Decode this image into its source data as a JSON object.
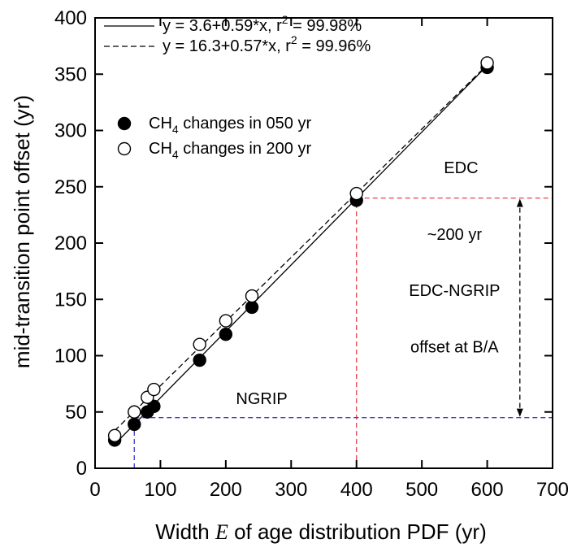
{
  "chart_data": {
    "type": "scatter",
    "xlabel_prefix": "Width ",
    "xlabel_var": "E",
    "xlabel_suffix": " of age distribution PDF (yr)",
    "ylabel": "mid-transition point offset (yr)",
    "xlim": [
      0,
      700
    ],
    "ylim": [
      0,
      400
    ],
    "xticks": [
      0,
      100,
      200,
      300,
      400,
      500,
      600,
      700
    ],
    "yticks": [
      0,
      50,
      100,
      150,
      200,
      250,
      300,
      350,
      400
    ],
    "series": [
      {
        "legend_label": "CH4 changes in 050 yr",
        "legend_pre": "CH",
        "legend_sub": "4",
        "legend_post": " changes in 050 yr",
        "marker": "filled",
        "x": [
          30,
          60,
          80,
          90,
          160,
          200,
          240,
          400,
          600
        ],
        "y": [
          25,
          39,
          50,
          55,
          96,
          119,
          143,
          238,
          356
        ]
      },
      {
        "legend_label": "CH4 changes in 200 yr",
        "legend_pre": "CH",
        "legend_sub": "4",
        "legend_post": " changes in 200 yr",
        "marker": "open",
        "x": [
          30,
          60,
          80,
          90,
          160,
          200,
          240,
          400,
          600
        ],
        "y": [
          29,
          50,
          63,
          70,
          110,
          131,
          153,
          244,
          360
        ]
      }
    ],
    "fits": [
      {
        "style": "solid",
        "intercept": 3.6,
        "slope": 0.59,
        "x_range": [
          30,
          600
        ],
        "label_main": "y = 3.6+0.59*x, r",
        "label_sup": "2",
        "label_end": " = 99.98%"
      },
      {
        "style": "dashed",
        "intercept": 16.3,
        "slope": 0.57,
        "x_range": [
          30,
          600
        ],
        "label_main": "y = 16.3+0.57*x, r",
        "label_sup": "2",
        "label_end": " = 99.96%"
      }
    ],
    "reference_lines": [
      {
        "name": "EDC",
        "color": "#e8414e",
        "x": 400,
        "y": 240
      },
      {
        "name": "NGRIP",
        "color": "#3a3ad0",
        "x": 60,
        "y": 45
      }
    ],
    "arrow": {
      "x": 650,
      "y_from": 45,
      "y_to": 240
    },
    "annotations": [
      {
        "key": "edc",
        "text": "EDC",
        "x": 560,
        "y": 262
      },
      {
        "key": "ngrip",
        "text": "NGRIP",
        "x": 255,
        "y": 57
      },
      {
        "key": "offset200",
        "text": "~200 yr",
        "x": 550,
        "y": 203
      },
      {
        "key": "edcngrip",
        "text": "EDC-NGRIP",
        "x": 550,
        "y": 153
      },
      {
        "key": "offsetba",
        "text": "offset at B/A",
        "x": 550,
        "y": 103
      }
    ]
  }
}
